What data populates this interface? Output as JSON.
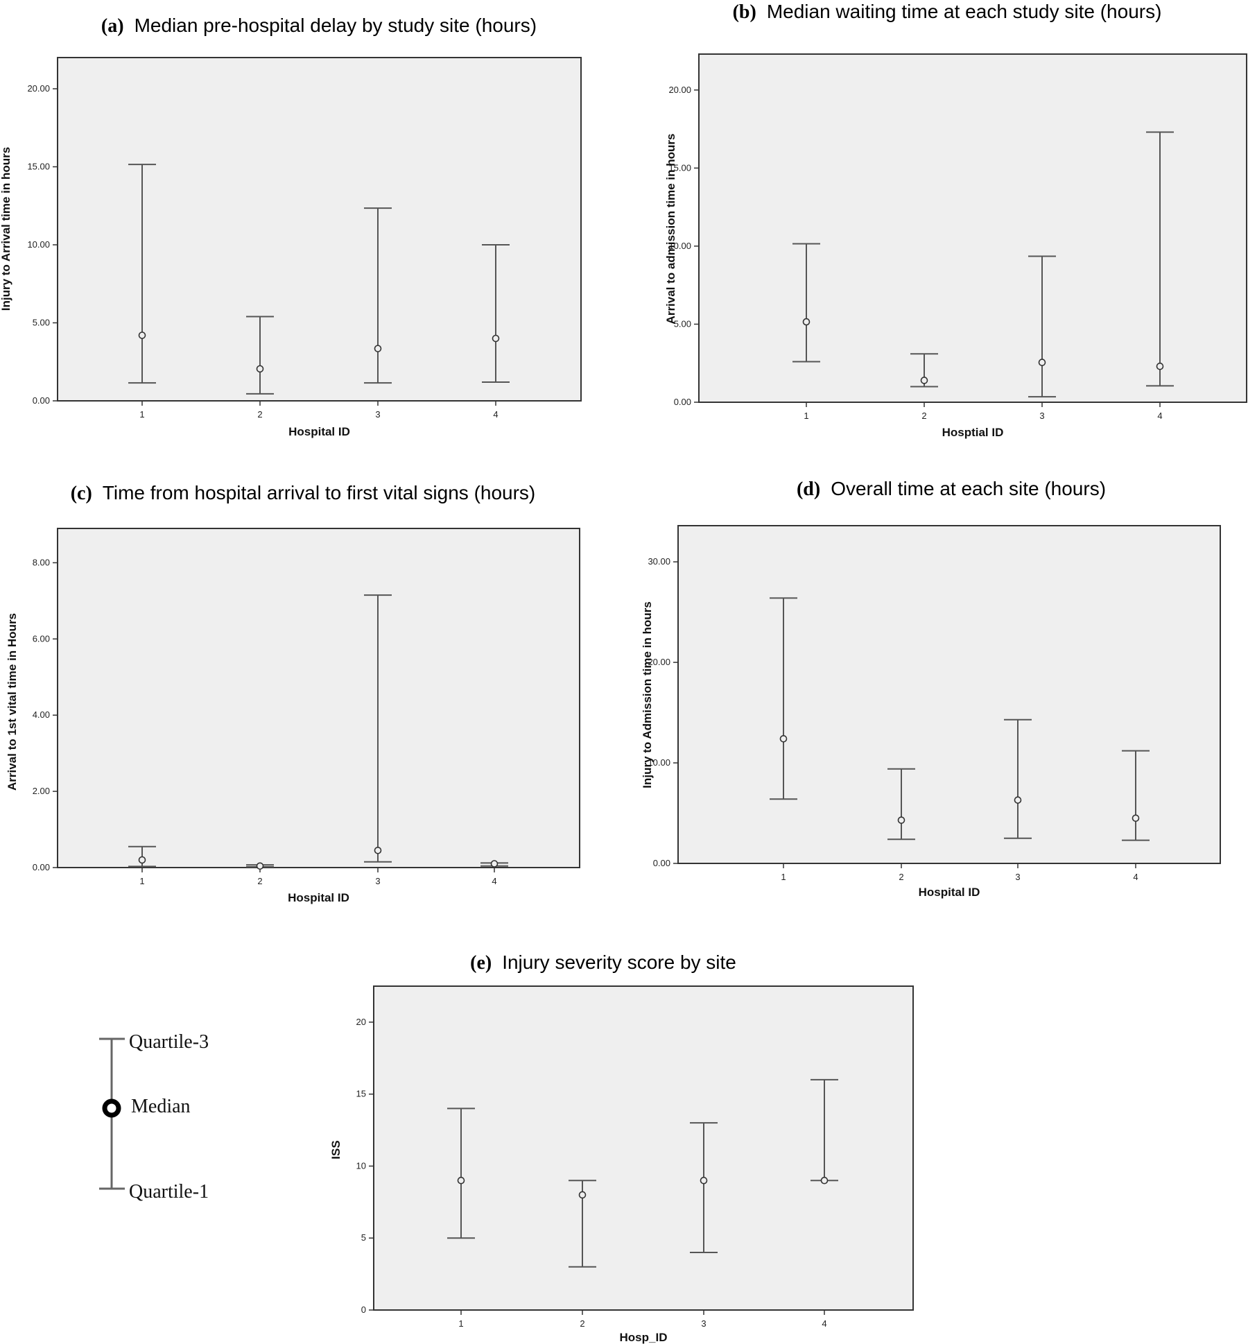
{
  "legend": {
    "q3_label": "Quartile-3",
    "median_label": "Median",
    "q1_label": "Quartile-1"
  },
  "chart_data": [
    {
      "id": "a",
      "type": "errorbar",
      "letter": "(a)",
      "title": "Median pre-hospital delay by study site (hours)",
      "xlabel": "Hospital ID",
      "ylabel": "Injury to Arrival time in hours",
      "categories": [
        "1",
        "2",
        "3",
        "4"
      ],
      "ylim": [
        0,
        22.0
      ],
      "yticks": [
        0,
        5,
        10,
        15,
        20
      ],
      "ytick_labels": [
        "0.00",
        "5.00",
        "10.00",
        "15.00",
        "20.00"
      ],
      "q1": [
        1.15,
        0.45,
        1.15,
        1.2
      ],
      "median": [
        4.2,
        2.05,
        3.35,
        4.0
      ],
      "q3": [
        15.15,
        5.4,
        12.35,
        10.0
      ],
      "color": "#555555",
      "plot_bg": "#efefef"
    },
    {
      "id": "b",
      "type": "errorbar",
      "letter": "(b)",
      "title": "Median waiting time at each study site (hours)",
      "xlabel": "Hosptial ID",
      "ylabel": "Arrival to admission time in hours",
      "categories": [
        "1",
        "2",
        "3",
        "4"
      ],
      "ylim": [
        0,
        22.3
      ],
      "yticks": [
        0,
        5,
        10,
        15,
        20
      ],
      "ytick_labels": [
        "0.00",
        "5.00",
        "10.00",
        "15.00",
        "20.00"
      ],
      "q1": [
        2.6,
        1.0,
        0.35,
        1.05
      ],
      "median": [
        5.15,
        1.4,
        2.55,
        2.3
      ],
      "q3": [
        10.15,
        3.1,
        9.35,
        17.3
      ],
      "color": "#555555",
      "plot_bg": "#efefef"
    },
    {
      "id": "c",
      "type": "errorbar",
      "letter": "(c)",
      "title": "Time from hospital arrival to first vital signs (hours)",
      "xlabel": "Hospital ID",
      "ylabel": "Arrival to 1st vital time in Hours",
      "categories": [
        "1",
        "2",
        "3",
        "4"
      ],
      "ylim": [
        0,
        8.9
      ],
      "yticks": [
        0,
        2,
        4,
        6,
        8
      ],
      "ytick_labels": [
        "0.00",
        "2.00",
        "4.00",
        "6.00",
        "8.00"
      ],
      "q1": [
        0.03,
        0.02,
        0.15,
        0.04
      ],
      "median": [
        0.2,
        0.04,
        0.45,
        0.1
      ],
      "q3": [
        0.55,
        0.07,
        7.15,
        0.12
      ],
      "color": "#555555",
      "plot_bg": "#efefef"
    },
    {
      "id": "d",
      "type": "errorbar",
      "letter": "(d)",
      "title": "Overall time at each site (hours)",
      "xlabel": "Hospital ID",
      "ylabel": "Injury to Admission time in hours",
      "categories": [
        "1",
        "2",
        "3",
        "4"
      ],
      "ylim": [
        0,
        33.6
      ],
      "yticks": [
        0,
        10,
        20,
        30
      ],
      "ytick_labels": [
        "0.00",
        "10.00",
        "20.00",
        "30.00"
      ],
      "q1": [
        6.4,
        2.4,
        2.5,
        2.3
      ],
      "median": [
        12.4,
        4.3,
        6.3,
        4.5
      ],
      "q3": [
        26.4,
        9.4,
        14.3,
        11.2
      ],
      "color": "#555555",
      "plot_bg": "#efefef"
    },
    {
      "id": "e",
      "type": "errorbar",
      "letter": "(e)",
      "title": "Injury severity score by site",
      "xlabel": "Hosp_ID",
      "ylabel": "ISS",
      "categories": [
        "1",
        "2",
        "3",
        "4"
      ],
      "ylim": [
        0,
        22.5
      ],
      "yticks": [
        0,
        5,
        10,
        15,
        20
      ],
      "ytick_labels": [
        "0",
        "5",
        "10",
        "15",
        "20"
      ],
      "q1": [
        5,
        3,
        4,
        9
      ],
      "median": [
        9,
        8,
        9,
        9
      ],
      "q3": [
        14,
        9,
        13,
        16
      ],
      "color": "#555555",
      "plot_bg": "#efefef"
    }
  ]
}
